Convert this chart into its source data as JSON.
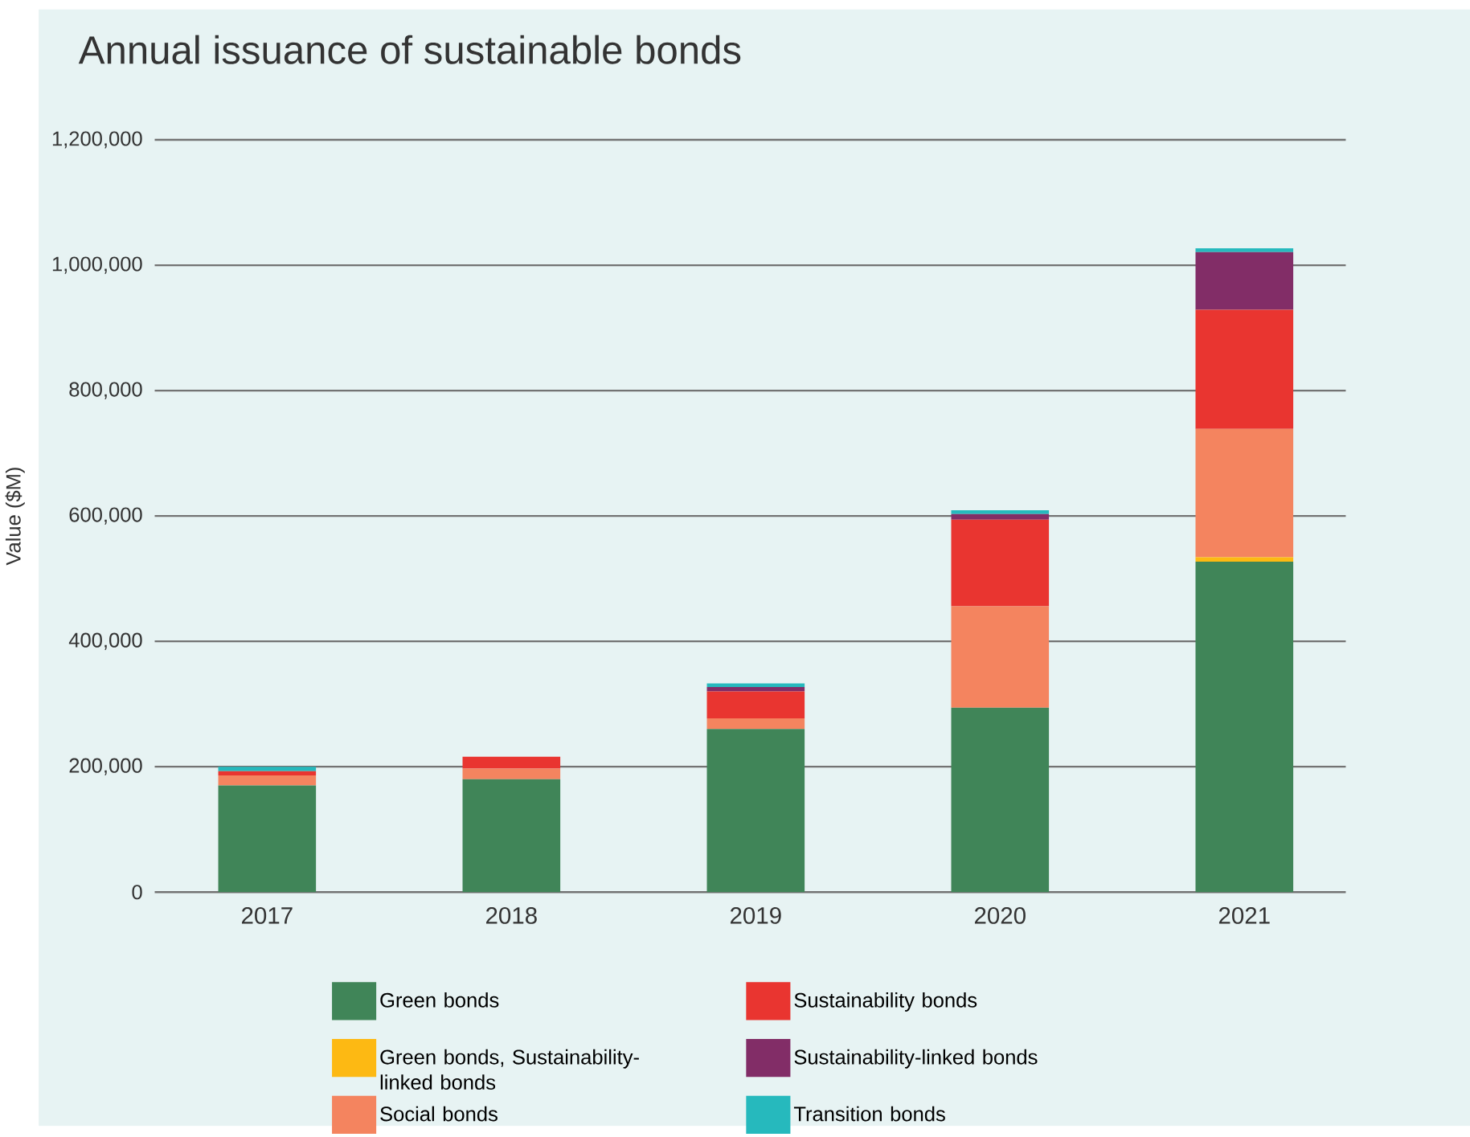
{
  "chart_data": {
    "type": "bar",
    "title": "Annual issuance of sustainable bonds",
    "ylabel": "Value ($M)",
    "categories": [
      "2017",
      "2018",
      "2019",
      "2020",
      "2021"
    ],
    "stacked": true,
    "series": [
      {
        "name": "Green bonds",
        "color": "#408558",
        "values": [
          170000,
          180000,
          260000,
          294000,
          527000
        ]
      },
      {
        "name": "Green bonds, Sustainability-linked bonds",
        "color": "#fdb913",
        "values": [
          0,
          0,
          0,
          0,
          7000
        ]
      },
      {
        "name": "Social bonds",
        "color": "#f4845f",
        "values": [
          16000,
          17000,
          17000,
          162000,
          205000
        ]
      },
      {
        "name": "Sustainability bonds",
        "color": "#e93530",
        "values": [
          7000,
          19000,
          43000,
          138000,
          190000
        ]
      },
      {
        "name": "Sustainability-linked bonds",
        "color": "#822d67",
        "values": [
          0,
          0,
          7000,
          9000,
          92000
        ]
      },
      {
        "name": "Transition bonds",
        "color": "#26b9bd",
        "values": [
          7000,
          0,
          6000,
          6000,
          6000
        ]
      }
    ],
    "ylim": [
      0,
      1200000
    ],
    "yticks": [
      0,
      {
        "value": 200000,
        "label": "200,000"
      },
      {
        "value": 400000,
        "label": "400,000"
      },
      {
        "value": 600000,
        "label": "600,000"
      },
      {
        "value": 800000,
        "label": "800,000"
      },
      {
        "value": 1000000,
        "label": "1,000,000"
      },
      {
        "value": 1200000,
        "label": "1,200,000"
      }
    ],
    "grid": "y",
    "legend": "bottom"
  }
}
